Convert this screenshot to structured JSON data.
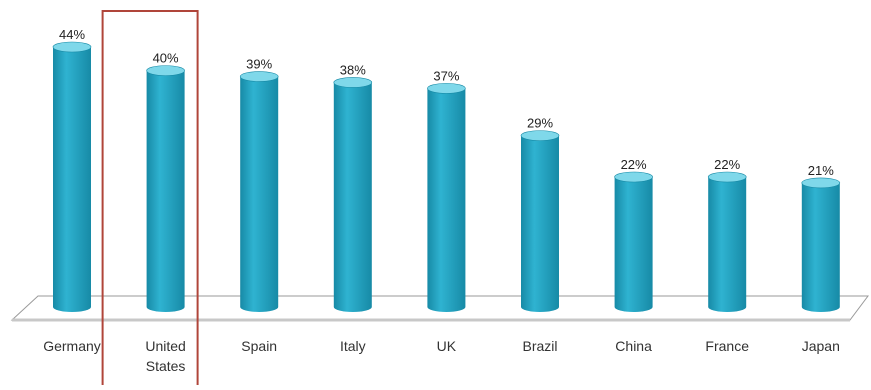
{
  "chart_data": {
    "type": "bar",
    "categories": [
      "Germany",
      "United States",
      "Spain",
      "Italy",
      "UK",
      "Brazil",
      "China",
      "France",
      "Japan"
    ],
    "category_lines": [
      [
        "Germany"
      ],
      [
        "United",
        "States"
      ],
      [
        "Spain"
      ],
      [
        "Italy"
      ],
      [
        "UK"
      ],
      [
        "Brazil"
      ],
      [
        "China"
      ],
      [
        "France"
      ],
      [
        "Japan"
      ]
    ],
    "values": [
      44,
      40,
      39,
      38,
      37,
      29,
      22,
      22,
      21
    ],
    "data_labels": [
      "44%",
      "40%",
      "39%",
      "38%",
      "37%",
      "29%",
      "22%",
      "22%",
      "21%"
    ],
    "unit": "%",
    "title": "",
    "xlabel": "",
    "ylabel": "",
    "ylim": [
      0,
      44
    ],
    "grid": false,
    "legend": "none",
    "highlighted_category": "United States",
    "colors": {
      "bar": "#2fb3d1",
      "bar_dark": "#178aa6",
      "bar_top": "#7fd8ea",
      "highlight_box": "#b0453a",
      "floor": "#9a9a9a",
      "label": "#222222"
    }
  }
}
